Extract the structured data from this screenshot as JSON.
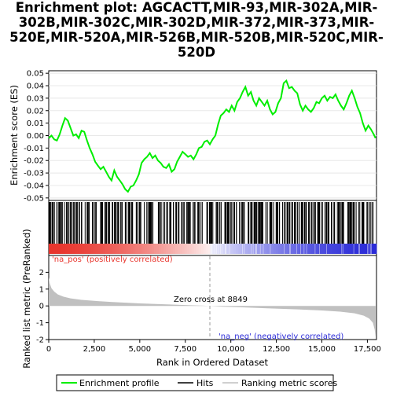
{
  "chart_data": {
    "type": "line",
    "title": "Enrichment plot: AGCACTT,MIR-93,MIR-302A,MIR-302B,MIR-302C,MIR-302D,MIR-372,MIR-373,MIR-520E,MIR-520A,MIR-526B,MIR-520B,MIR-520C,MIR-520D",
    "xlabel": "Rank in Ordered Dataset",
    "ylabel_top": "Enrichment score (ES)",
    "ylabel_bottom": "Ranked list metric (PreRanked)",
    "xlim": [
      0,
      18000
    ],
    "x_ticks": [
      "0",
      "2,500",
      "5,000",
      "7,500",
      "10,000",
      "12,500",
      "15,000",
      "17,500"
    ],
    "x_tick_values": [
      0,
      2500,
      5000,
      7500,
      10000,
      12500,
      15000,
      17500
    ],
    "es_ylim": [
      -0.052,
      0.052
    ],
    "es_ticks": [
      "0.05",
      "0.04",
      "0.03",
      "0.02",
      "0.01",
      "0.00",
      "-0.01",
      "-0.02",
      "-0.03",
      "-0.04",
      "-0.05"
    ],
    "es_tick_values": [
      0.05,
      0.04,
      0.03,
      0.02,
      0.01,
      0.0,
      -0.01,
      -0.02,
      -0.03,
      -0.04,
      -0.05
    ],
    "metric_ylim": [
      -2,
      3
    ],
    "metric_ticks": [
      "2",
      "1",
      "0",
      "-1",
      "-2"
    ],
    "metric_tick_values": [
      2,
      1,
      0,
      -1,
      -2
    ],
    "series": [
      {
        "name": "Enrichment profile",
        "color": "#00ff00",
        "x": [
          0,
          150,
          300,
          450,
          600,
          750,
          900,
          1050,
          1200,
          1350,
          1500,
          1650,
          1800,
          1950,
          2100,
          2250,
          2400,
          2550,
          2700,
          2850,
          3000,
          3150,
          3300,
          3450,
          3600,
          3750,
          3900,
          4050,
          4200,
          4350,
          4500,
          4650,
          4800,
          4950,
          5100,
          5250,
          5400,
          5550,
          5700,
          5850,
          6000,
          6150,
          6300,
          6450,
          6600,
          6750,
          6900,
          7050,
          7200,
          7350,
          7500,
          7650,
          7800,
          7950,
          8100,
          8250,
          8400,
          8550,
          8700,
          8850,
          9000,
          9150,
          9300,
          9450,
          9600,
          9750,
          9900,
          10050,
          10200,
          10350,
          10500,
          10650,
          10800,
          10950,
          11100,
          11250,
          11400,
          11550,
          11700,
          11850,
          12000,
          12150,
          12300,
          12450,
          12600,
          12750,
          12900,
          13050,
          13200,
          13350,
          13500,
          13650,
          13800,
          13950,
          14100,
          14250,
          14400,
          14550,
          14700,
          14850,
          15000,
          15150,
          15300,
          15450,
          15600,
          15750,
          15900,
          16050,
          16200,
          16350,
          16500,
          16650,
          16800,
          16950,
          17100,
          17250,
          17400,
          17550,
          17700,
          17850,
          17950
        ],
        "values": [
          -0.002,
          0.0,
          -0.003,
          -0.004,
          0.001,
          0.008,
          0.014,
          0.012,
          0.006,
          0.0,
          0.001,
          -0.002,
          0.004,
          0.003,
          -0.004,
          -0.01,
          -0.015,
          -0.021,
          -0.024,
          -0.027,
          -0.025,
          -0.029,
          -0.033,
          -0.036,
          -0.028,
          -0.033,
          -0.036,
          -0.039,
          -0.043,
          -0.045,
          -0.041,
          -0.04,
          -0.036,
          -0.031,
          -0.022,
          -0.019,
          -0.017,
          -0.014,
          -0.018,
          -0.016,
          -0.02,
          -0.022,
          -0.025,
          -0.026,
          -0.023,
          -0.029,
          -0.027,
          -0.021,
          -0.017,
          -0.013,
          -0.015,
          -0.017,
          -0.016,
          -0.019,
          -0.015,
          -0.01,
          -0.009,
          -0.005,
          -0.004,
          -0.007,
          -0.003,
          0.0,
          0.009,
          0.016,
          0.018,
          0.021,
          0.019,
          0.024,
          0.02,
          0.027,
          0.03,
          0.035,
          0.039,
          0.032,
          0.035,
          0.028,
          0.024,
          0.03,
          0.027,
          0.024,
          0.028,
          0.021,
          0.017,
          0.019,
          0.026,
          0.03,
          0.042,
          0.044,
          0.038,
          0.039,
          0.036,
          0.034,
          0.025,
          0.02,
          0.024,
          0.021,
          0.019,
          0.022,
          0.027,
          0.026,
          0.03,
          0.032,
          0.028,
          0.031,
          0.03,
          0.033,
          0.028,
          0.024,
          0.021,
          0.026,
          0.032,
          0.036,
          0.03,
          0.023,
          0.018,
          0.01,
          0.004,
          0.008,
          0.005,
          0.001,
          -0.002
        ]
      },
      {
        "name": "Hits",
        "color": "#000000"
      },
      {
        "name": "Ranking metric scores",
        "color": "#c0c0c0",
        "x": [
          0,
          50,
          150,
          300,
          500,
          800,
          1200,
          1800,
          2500,
          3500,
          5000,
          6500,
          7500,
          8400,
          8849,
          9500,
          10500,
          12000,
          13500,
          15000,
          16000,
          16800,
          17300,
          17600,
          17800,
          17900,
          17950
        ],
        "values": [
          1.7,
          1.35,
          1.05,
          0.85,
          0.68,
          0.55,
          0.45,
          0.36,
          0.3,
          0.23,
          0.15,
          0.09,
          0.05,
          0.02,
          0.0,
          -0.04,
          -0.08,
          -0.14,
          -0.2,
          -0.27,
          -0.34,
          -0.44,
          -0.58,
          -0.75,
          -1.0,
          -1.4,
          -1.85
        ]
      }
    ],
    "zero_cross_label": "Zero cross at 8849",
    "zero_cross_x": 8849,
    "pos_label": "'na_pos' (positively correlated)",
    "neg_label": "'na_neg' (negatively correlated)",
    "pos_color": "#e8352d",
    "neg_color": "#2c2cd8",
    "hit_density": [
      10,
      10,
      9,
      9,
      9,
      9,
      8,
      9,
      8,
      8,
      8,
      8,
      8,
      8,
      9,
      8,
      8,
      8,
      8,
      8,
      8,
      9,
      8,
      9,
      8,
      8,
      9,
      9,
      10,
      10,
      9,
      9,
      10,
      10,
      9,
      9
    ]
  }
}
